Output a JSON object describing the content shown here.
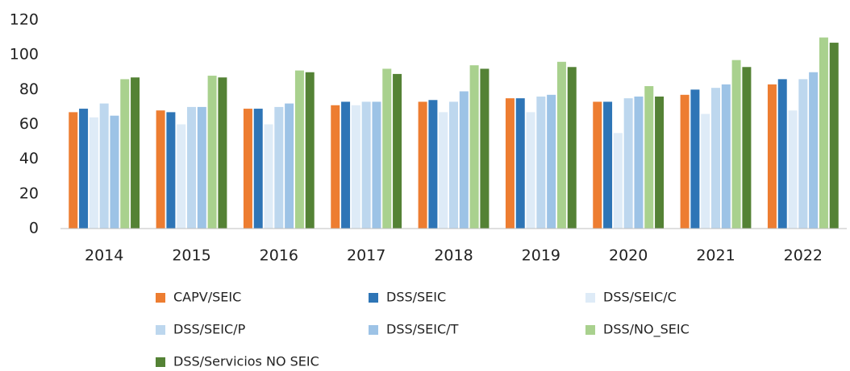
{
  "chart_data": {
    "type": "bar",
    "categories": [
      "2014",
      "2015",
      "2016",
      "2017",
      "2018",
      "2019",
      "2020",
      "2021",
      "2022"
    ],
    "series": [
      {
        "name": "CAPV/SEIC",
        "color": "#ed7d31",
        "values": [
          67,
          68,
          69,
          71,
          73,
          75,
          73,
          77,
          83
        ]
      },
      {
        "name": "DSS/SEIC",
        "color": "#2e75b6",
        "values": [
          69,
          67,
          69,
          73,
          74,
          75,
          73,
          80,
          86
        ]
      },
      {
        "name": "DSS/SEIC/C",
        "color": "#deebf7",
        "values": [
          64,
          60,
          60,
          71,
          67,
          67,
          55,
          66,
          68
        ]
      },
      {
        "name": "DSS/SEIC/P",
        "color": "#bdd7ee",
        "values": [
          72,
          70,
          70,
          73,
          73,
          76,
          75,
          81,
          86
        ]
      },
      {
        "name": "DSS/SEIC/T",
        "color": "#9dc3e6",
        "values": [
          65,
          70,
          72,
          73,
          79,
          77,
          76,
          83,
          90
        ]
      },
      {
        "name": "DSS/NO_SEIC",
        "color": "#a9d18e",
        "values": [
          86,
          88,
          91,
          92,
          94,
          96,
          82,
          97,
          110
        ]
      },
      {
        "name": "DSS/Servicios NO SEIC",
        "color": "#548235",
        "values": [
          87,
          87,
          90,
          89,
          92,
          93,
          76,
          93,
          107
        ]
      }
    ],
    "ylim": [
      0,
      120
    ],
    "yticks": [
      0,
      20,
      40,
      60,
      80,
      100,
      120
    ],
    "grid": false
  }
}
